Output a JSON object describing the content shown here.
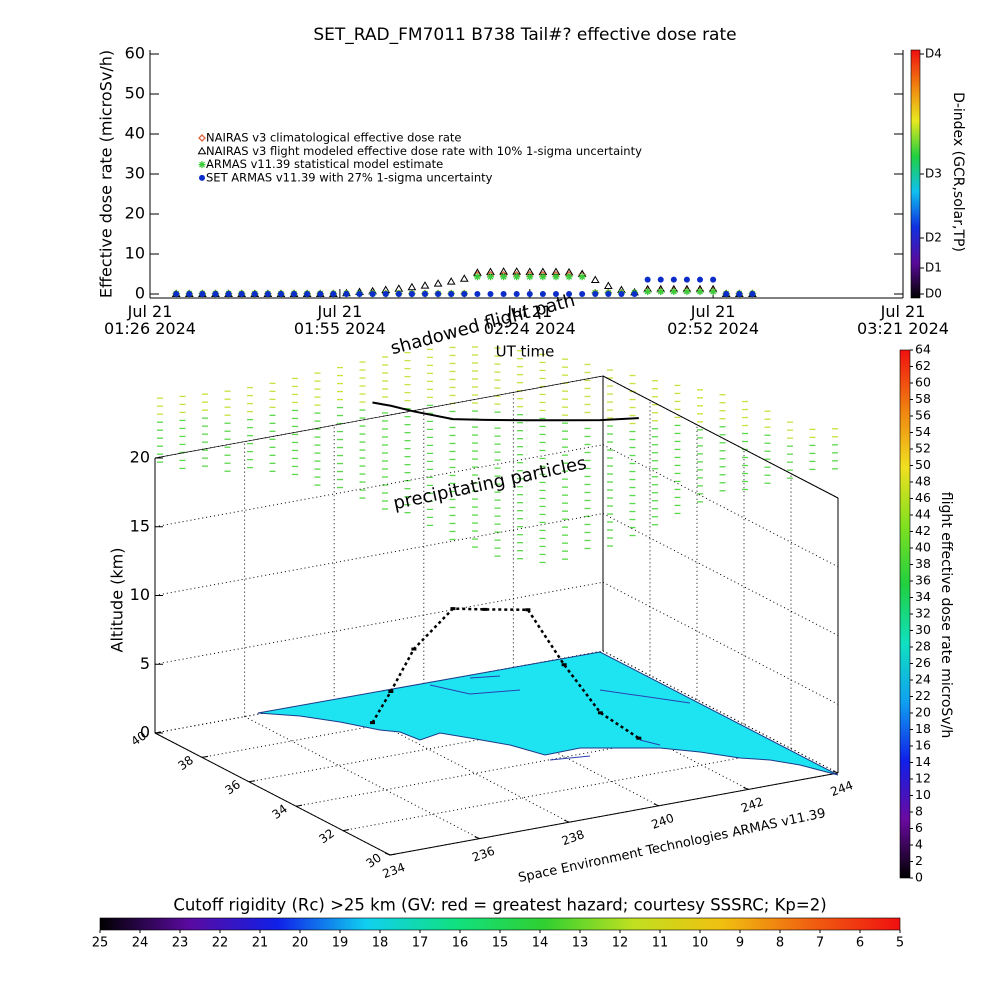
{
  "chart_data": [
    {
      "type": "line",
      "title": "SET_RAD_FM7011  B738 Tail#? effective dose rate",
      "ylabel": "Effective dose rate (microSv/h)",
      "xlabel": "UT time",
      "legend": "upper left",
      "xlim": [
        "2024-07-21T01:26",
        "2024-07-21T03:21"
      ],
      "xticks": [
        {
          "value": "2024-07-21T01:26",
          "label": "Jul 21\n01:26 2024"
        },
        {
          "value": "2024-07-21T01:55",
          "label": "Jul 21\n01:55 2024"
        },
        {
          "value": "2024-07-21T02:24",
          "label": "Jul 21\n02:24 2024"
        },
        {
          "value": "2024-07-21T02:52",
          "label": "Jul 21\n02:52 2024"
        },
        {
          "value": "2024-07-21T03:21",
          "label": "Jul 21\n03:21 2024"
        }
      ],
      "ylim": [
        -1,
        61
      ],
      "yticks": [
        0,
        10,
        20,
        30,
        40,
        50,
        60
      ],
      "x": [
        "2024-07-21T01:30",
        "2024-07-21T01:32",
        "2024-07-21T01:34",
        "2024-07-21T01:36",
        "2024-07-21T01:38",
        "2024-07-21T01:40",
        "2024-07-21T01:42",
        "2024-07-21T01:44",
        "2024-07-21T01:46",
        "2024-07-21T01:48",
        "2024-07-21T01:50",
        "2024-07-21T01:52",
        "2024-07-21T01:54",
        "2024-07-21T01:56",
        "2024-07-21T01:58",
        "2024-07-21T02:00",
        "2024-07-21T02:02",
        "2024-07-21T02:04",
        "2024-07-21T02:06",
        "2024-07-21T02:08",
        "2024-07-21T02:10",
        "2024-07-21T02:12",
        "2024-07-21T02:14",
        "2024-07-21T02:16",
        "2024-07-21T02:18",
        "2024-07-21T02:20",
        "2024-07-21T02:22",
        "2024-07-21T02:24",
        "2024-07-21T02:26",
        "2024-07-21T02:28",
        "2024-07-21T02:30",
        "2024-07-21T02:32",
        "2024-07-21T02:34",
        "2024-07-21T02:36",
        "2024-07-21T02:38",
        "2024-07-21T02:40",
        "2024-07-21T02:42",
        "2024-07-21T02:44",
        "2024-07-21T02:46",
        "2024-07-21T02:48",
        "2024-07-21T02:50",
        "2024-07-21T02:52",
        "2024-07-21T02:54",
        "2024-07-21T02:56",
        "2024-07-21T02:58"
      ],
      "series": [
        {
          "name": "NAIRAS v3 climatological effective dose rate",
          "color": "#e0603c",
          "marker": "diamond",
          "values": [
            0.1,
            0.1,
            0.1,
            0.1,
            0.1,
            0.1,
            0.1,
            0.1,
            0.1,
            0.1,
            0.1,
            0.1,
            0.1,
            0.1,
            0.1,
            0.1,
            0.1,
            0.1,
            0.1,
            0.1,
            0.1,
            0.1,
            0.1,
            4.8,
            4.8,
            4.8,
            4.8,
            4.8,
            4.8,
            4.8,
            4.8,
            4.8,
            0.3,
            0.3,
            0.3,
            0.3,
            0.9,
            0.9,
            0.9,
            0.9,
            0.9,
            0.9,
            0.1,
            0.1,
            0.1
          ]
        },
        {
          "name": "NAIRAS v3 flight modeled effective dose rate with 10% 1-sigma uncertainty",
          "color": "#000000",
          "marker": "triangle",
          "values": [
            0,
            0,
            0,
            0,
            0,
            0,
            0,
            0,
            0,
            0,
            0,
            0,
            0,
            0.2,
            0.5,
            0.7,
            1.0,
            1.3,
            1.7,
            2.1,
            2.6,
            3.1,
            3.8,
            5.3,
            5.5,
            5.6,
            5.6,
            5.5,
            5.5,
            5.5,
            5.4,
            5.0,
            3.5,
            2.0,
            1.0,
            0.4,
            1.2,
            1.2,
            1.2,
            1.2,
            1.2,
            1.2,
            0,
            0,
            0
          ]
        },
        {
          "name": "ARMAS v11.39 statistical model estimate",
          "color": "#3ccc3c",
          "marker": "asterisk",
          "values": [
            0.1,
            0.1,
            0.1,
            0.1,
            0.1,
            0.1,
            0.1,
            0.1,
            0.1,
            0.1,
            0.1,
            0.1,
            0.1,
            0.1,
            0.1,
            0.1,
            0.1,
            0.1,
            0.1,
            0.1,
            0.1,
            0.1,
            0.1,
            4.3,
            4.3,
            4.3,
            4.3,
            4.3,
            4.3,
            4.3,
            4.3,
            4.3,
            0.3,
            0.3,
            0.3,
            0.3,
            0.6,
            0.6,
            0.6,
            0.6,
            0.6,
            0.6,
            0.1,
            0.1,
            0.1
          ]
        },
        {
          "name": "SET ARMAS v11.39 with 27% 1-sigma uncertainty",
          "color": "#0a2cc8",
          "marker": "circle",
          "values": [
            0,
            0,
            0,
            0,
            0,
            0,
            0,
            0,
            0,
            0,
            0,
            0,
            0,
            0,
            0,
            0,
            0,
            0,
            0,
            0,
            0,
            0,
            0,
            0,
            0,
            0,
            0,
            0,
            0,
            0,
            0,
            0,
            0,
            0,
            0,
            0,
            3.6,
            3.6,
            3.6,
            3.6,
            3.6,
            3.6,
            0,
            0,
            0
          ]
        }
      ],
      "colorbar": {
        "label": "D-index (GCR,solar,TP)",
        "colors": [
          "#000000",
          "#5a0a9a",
          "#1030e0",
          "#10c0f0",
          "#20d040",
          "#e8e820",
          "#f08010",
          "#f01010"
        ],
        "ticks": [
          {
            "value": 0,
            "label": "D0"
          },
          {
            "value": 6.5,
            "label": "D1"
          },
          {
            "value": 14,
            "label": "D2"
          },
          {
            "value": 30,
            "label": "D3"
          },
          {
            "value": 60,
            "label": "D4"
          }
        ]
      }
    },
    {
      "type": "line3d",
      "zlabel": "Altitude (km)",
      "xlim": [
        234,
        244
      ],
      "xticks": [
        234,
        236,
        238,
        240,
        242,
        244
      ],
      "ylim": [
        30,
        40
      ],
      "yticks": [
        30,
        32,
        34,
        36,
        38,
        40
      ],
      "zlim": [
        0,
        20
      ],
      "zticks": [
        0,
        5,
        10,
        15,
        20
      ],
      "annotations": [
        "shadowed flight path",
        "precipitating particles"
      ],
      "credit": "Space Environment Technologies ARMAS v11.39",
      "series": [
        {
          "color": "#000000",
          "x": [
            237.7,
            237.9,
            238.1,
            238.5,
            239.0,
            239.7,
            240.3,
            240.9,
            241.6
          ],
          "y": [
            37.8,
            37.4,
            36.8,
            35.9,
            35.5,
            35.0,
            34.6,
            34.2,
            33.9
          ],
          "z": [
            0.5,
            3,
            6.5,
            10,
            10,
            10,
            6,
            2.5,
            0.5
          ]
        }
      ],
      "colorbar": {
        "label": "flight effective dose rate microSv/h",
        "colors": [
          "#000000",
          "#6a0aa0",
          "#1020e8",
          "#10a0f0",
          "#10e0c0",
          "#20d040",
          "#80e020",
          "#f0e020",
          "#f08010",
          "#f01010"
        ],
        "lim": [
          0,
          64
        ],
        "ticks": [
          0,
          2,
          4,
          6,
          8,
          10,
          12,
          14,
          16,
          18,
          20,
          22,
          24,
          26,
          28,
          30,
          32,
          34,
          36,
          38,
          40,
          42,
          44,
          46,
          48,
          50,
          52,
          54,
          56,
          58,
          60,
          62,
          64
        ]
      }
    },
    {
      "type": "colorbar",
      "title": "Cutoff rigidity (Rc) >25 km (GV: red = greatest hazard; courtesy SSSRC; Kp=2)",
      "colors": [
        "#000000",
        "#5a0aa0",
        "#1020e8",
        "#10d0f0",
        "#10e080",
        "#30d030",
        "#c0e020",
        "#f0c010",
        "#f06010",
        "#f01010"
      ],
      "xlim": [
        25,
        5
      ],
      "xticks": [
        25,
        24,
        23,
        22,
        21,
        20,
        19,
        18,
        17,
        16,
        15,
        14,
        13,
        12,
        11,
        10,
        9,
        8,
        7,
        6,
        5
      ]
    }
  ]
}
